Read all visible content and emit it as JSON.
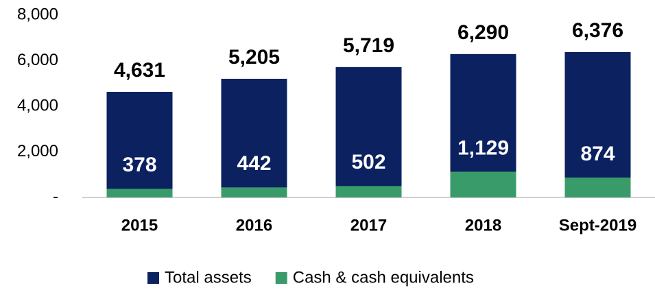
{
  "chart_data": {
    "type": "bar",
    "barmode": "overlay",
    "categories": [
      "2015",
      "2016",
      "2017",
      "2018",
      "Sept-2019"
    ],
    "series": [
      {
        "name": "Total assets",
        "color": "#0b2160",
        "values": [
          4631,
          5205,
          5719,
          6290,
          6376
        ],
        "value_labels": [
          "4,631",
          "5,205",
          "5,719",
          "6,290",
          "6,376"
        ]
      },
      {
        "name": "Cash & cash equivalents",
        "color": "#3a9b6a",
        "values": [
          378,
          442,
          502,
          1129,
          874
        ],
        "value_labels": [
          "378",
          "442",
          "502",
          "1,129",
          "874"
        ]
      }
    ],
    "ylim": [
      0,
      8000
    ],
    "yticks": [
      {
        "value": 0,
        "label": "-"
      },
      {
        "value": 2000,
        "label": "2,000"
      },
      {
        "value": 4000,
        "label": "4,000"
      },
      {
        "value": 6000,
        "label": "6,000"
      },
      {
        "value": 8000,
        "label": "8,000"
      }
    ],
    "grid": false,
    "legend": "bottom"
  }
}
